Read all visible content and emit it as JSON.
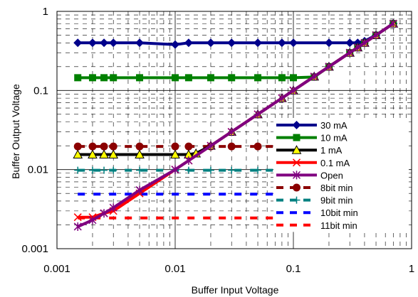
{
  "chart_data": {
    "type": "line",
    "title": "",
    "xlabel": "Buffer Input Voltage",
    "ylabel": "Buffer Output Voltage",
    "x_scale": "log",
    "y_scale": "log",
    "xlim": [
      0.001,
      1
    ],
    "ylim": [
      0.001,
      1
    ],
    "x_ticks": [
      0.001,
      0.01,
      0.1,
      1
    ],
    "y_ticks": [
      0.001,
      0.01,
      0.1,
      1
    ],
    "x_tick_labels": [
      "0.001",
      "0.01",
      "0.1",
      "1"
    ],
    "y_tick_labels": [
      "0.001",
      "0.01",
      "0.1",
      "1"
    ],
    "grid": true,
    "legend_position": "bottom-right",
    "series": [
      {
        "name": "30 mA",
        "color": "#00008b",
        "marker": "diamond",
        "style": "solid",
        "x": [
          0.0015,
          0.002,
          0.0025,
          0.003,
          0.005,
          0.01,
          0.013,
          0.02,
          0.03,
          0.05,
          0.08,
          0.1,
          0.2,
          0.3,
          0.35,
          0.4,
          0.5,
          0.7
        ],
        "y": [
          0.4,
          0.4,
          0.4,
          0.4,
          0.4,
          0.38,
          0.4,
          0.4,
          0.4,
          0.4,
          0.4,
          0.4,
          0.4,
          0.4,
          0.4,
          0.42,
          0.5,
          0.7
        ]
      },
      {
        "name": "10 mA",
        "color": "#008000",
        "marker": "square",
        "style": "solid",
        "x": [
          0.0015,
          0.002,
          0.0025,
          0.003,
          0.005,
          0.01,
          0.013,
          0.02,
          0.03,
          0.05,
          0.08,
          0.1,
          0.15,
          0.2,
          0.3,
          0.35,
          0.4,
          0.5,
          0.7
        ],
        "y": [
          0.145,
          0.145,
          0.145,
          0.145,
          0.145,
          0.145,
          0.145,
          0.145,
          0.145,
          0.145,
          0.145,
          0.145,
          0.148,
          0.2,
          0.3,
          0.35,
          0.4,
          0.5,
          0.7
        ]
      },
      {
        "name": "1 mA",
        "color": "#000000",
        "marker": "triangle",
        "marker_fill": "#ffff00",
        "style": "solid",
        "x": [
          0.0015,
          0.002,
          0.0025,
          0.003,
          0.005,
          0.01,
          0.013,
          0.015,
          0.02,
          0.03,
          0.05,
          0.08,
          0.1,
          0.15,
          0.2,
          0.3,
          0.35,
          0.4,
          0.5,
          0.7
        ],
        "y": [
          0.0155,
          0.0155,
          0.0155,
          0.0155,
          0.0155,
          0.0155,
          0.0155,
          0.016,
          0.02,
          0.03,
          0.05,
          0.08,
          0.1,
          0.15,
          0.2,
          0.3,
          0.35,
          0.4,
          0.5,
          0.7
        ]
      },
      {
        "name": "0.1 mA",
        "color": "#ff0000",
        "marker": "x",
        "style": "solid",
        "x": [
          0.0015,
          0.002,
          0.0025,
          0.003,
          0.005,
          0.01,
          0.013,
          0.02,
          0.03,
          0.05,
          0.08,
          0.1,
          0.15,
          0.2,
          0.3,
          0.35,
          0.4,
          0.5,
          0.7
        ],
        "y": [
          0.0025,
          0.0025,
          0.0028,
          0.003,
          0.005,
          0.01,
          0.013,
          0.02,
          0.03,
          0.05,
          0.08,
          0.1,
          0.15,
          0.2,
          0.3,
          0.35,
          0.4,
          0.5,
          0.7
        ]
      },
      {
        "name": "Open",
        "color": "#800080",
        "marker": "asterisk",
        "style": "solid",
        "x": [
          0.0015,
          0.002,
          0.0025,
          0.003,
          0.005,
          0.01,
          0.013,
          0.02,
          0.03,
          0.05,
          0.08,
          0.1,
          0.15,
          0.2,
          0.3,
          0.35,
          0.4,
          0.5,
          0.7
        ],
        "y": [
          0.0019,
          0.0023,
          0.0028,
          0.0033,
          0.0055,
          0.01,
          0.013,
          0.02,
          0.03,
          0.05,
          0.08,
          0.1,
          0.15,
          0.2,
          0.3,
          0.35,
          0.4,
          0.5,
          0.7
        ]
      },
      {
        "name": "8bit min",
        "color": "#8b0000",
        "marker": "circle",
        "style": "dashed",
        "x": [
          0.0015,
          0.002,
          0.0025,
          0.003,
          0.005,
          0.01,
          0.013,
          0.02,
          0.03,
          0.05,
          0.08
        ],
        "y": [
          0.0196,
          0.0196,
          0.0196,
          0.0196,
          0.0196,
          0.0196,
          0.0196,
          0.0196,
          0.0196,
          0.0196,
          0.0196
        ]
      },
      {
        "name": "9bit min",
        "color": "#008080",
        "marker": "plus",
        "style": "dashed",
        "x": [
          0.0015,
          0.002,
          0.0025,
          0.003,
          0.005,
          0.01,
          0.013,
          0.02,
          0.03,
          0.05,
          0.08
        ],
        "y": [
          0.0098,
          0.0098,
          0.0098,
          0.0098,
          0.0098,
          0.0098,
          0.0098,
          0.0098,
          0.0098,
          0.0098,
          0.0098
        ]
      },
      {
        "name": "10bit min",
        "color": "#0000ff",
        "marker": "none",
        "style": "dashed",
        "x": [
          0.0015,
          0.08
        ],
        "y": [
          0.0049,
          0.0049
        ]
      },
      {
        "name": "11bit min",
        "color": "#ff0000",
        "marker": "none",
        "style": "dashed",
        "x": [
          0.0015,
          0.08
        ],
        "y": [
          0.00245,
          0.00245
        ]
      }
    ]
  }
}
